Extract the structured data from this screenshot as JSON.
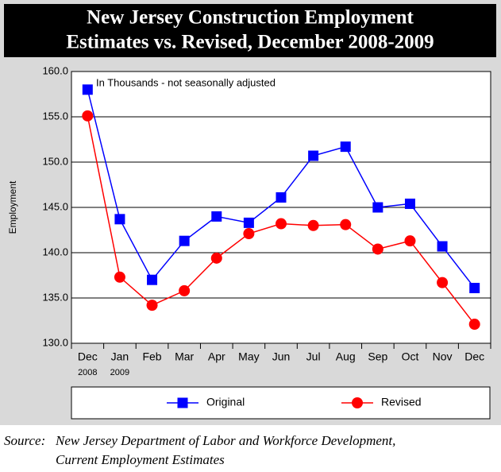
{
  "chart_data": {
    "type": "line",
    "title": [
      "New Jersey Construction Employment",
      "Estimates vs. Revised, December 2008-2009"
    ],
    "y_label": "Employment",
    "annotation": "In Thousands - not seasonally adjusted",
    "categories": [
      "Dec",
      "Jan",
      "Feb",
      "Mar",
      "Apr",
      "May",
      "Jun",
      "Jul",
      "Aug",
      "Sep",
      "Oct",
      "Nov",
      "Dec"
    ],
    "sublabels": [
      "2008",
      "2009",
      null,
      null,
      null,
      null,
      null,
      null,
      null,
      null,
      null,
      null,
      null
    ],
    "series": [
      {
        "name": "Original",
        "color": "#0000ff",
        "marker": "square",
        "values": [
          158.0,
          143.7,
          137.0,
          141.3,
          144.0,
          143.3,
          146.1,
          150.7,
          151.7,
          145.0,
          145.4,
          140.7,
          136.1
        ]
      },
      {
        "name": "Revised",
        "color": "#ff0000",
        "marker": "circle",
        "values": [
          155.1,
          137.3,
          134.2,
          135.8,
          139.4,
          142.1,
          143.2,
          143.0,
          143.1,
          140.4,
          141.3,
          136.7,
          132.1
        ]
      }
    ],
    "ylim": [
      130,
      160
    ],
    "yticks": [
      {
        "value": 130,
        "label": "130.0"
      },
      {
        "value": 135,
        "label": "135.0"
      },
      {
        "value": 140,
        "label": "140.0"
      },
      {
        "value": 145,
        "label": "145.0"
      },
      {
        "value": 150,
        "label": "150.0"
      },
      {
        "value": 155,
        "label": "155.0"
      },
      {
        "value": 160,
        "label": "160.0"
      }
    ],
    "grid": true,
    "source_label": "Source:",
    "source": [
      "New Jersey Department of Labor and Workforce Development,",
      "Current Employment Estimates"
    ]
  }
}
